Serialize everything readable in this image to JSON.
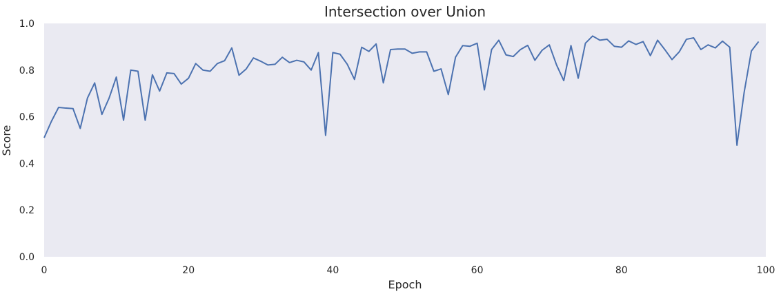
{
  "chart_data": {
    "type": "line",
    "title": "Intersection over Union",
    "xlabel": "Epoch",
    "ylabel": "Score",
    "xlim": [
      0,
      100
    ],
    "ylim": [
      0.0,
      1.0
    ],
    "xticks": [
      "0",
      "20",
      "40",
      "60",
      "80",
      "100"
    ],
    "yticks": [
      "0.0",
      "0.2",
      "0.4",
      "0.6",
      "0.8",
      "1.0"
    ],
    "grid": false,
    "colors": {
      "plot_bg": "#eaeaf2",
      "line": "#4c72b0"
    },
    "series": [
      {
        "x": [
          0,
          1,
          2,
          3,
          4,
          5,
          6,
          7,
          8,
          9,
          10,
          11,
          12,
          13,
          14,
          15,
          16,
          17,
          18,
          19,
          20,
          21,
          22,
          23,
          24,
          25,
          26,
          27,
          28,
          29,
          30,
          31,
          32,
          33,
          34,
          35,
          36,
          37,
          38,
          39,
          40,
          41,
          42,
          43,
          44,
          45,
          46,
          47,
          48,
          49,
          50,
          51,
          52,
          53,
          54,
          55,
          56,
          57,
          58,
          59,
          60,
          61,
          62,
          63,
          64,
          65,
          66,
          67,
          68,
          69,
          70,
          71,
          72,
          73,
          74,
          75,
          76,
          77,
          78,
          79,
          80,
          81,
          82,
          83,
          84,
          85,
          86,
          87,
          88,
          89,
          90,
          91,
          92,
          93,
          94,
          95,
          96,
          97,
          98,
          99
        ],
        "values": [
          0.51,
          0.58,
          0.64,
          0.637,
          0.635,
          0.55,
          0.68,
          0.745,
          0.61,
          0.68,
          0.77,
          0.585,
          0.8,
          0.795,
          0.585,
          0.78,
          0.71,
          0.788,
          0.785,
          0.74,
          0.765,
          0.828,
          0.8,
          0.795,
          0.828,
          0.84,
          0.895,
          0.778,
          0.805,
          0.852,
          0.838,
          0.822,
          0.825,
          0.855,
          0.832,
          0.842,
          0.835,
          0.8,
          0.875,
          0.52,
          0.875,
          0.868,
          0.825,
          0.76,
          0.898,
          0.88,
          0.912,
          0.745,
          0.888,
          0.89,
          0.89,
          0.872,
          0.878,
          0.878,
          0.795,
          0.805,
          0.695,
          0.855,
          0.905,
          0.902,
          0.915,
          0.715,
          0.888,
          0.928,
          0.865,
          0.858,
          0.888,
          0.906,
          0.842,
          0.885,
          0.908,
          0.822,
          0.755,
          0.905,
          0.765,
          0.915,
          0.946,
          0.928,
          0.932,
          0.902,
          0.898,
          0.925,
          0.91,
          0.922,
          0.862,
          0.928,
          0.888,
          0.845,
          0.878,
          0.932,
          0.938,
          0.888,
          0.908,
          0.895,
          0.924,
          0.898,
          0.478,
          0.705,
          0.882,
          0.922
        ]
      }
    ]
  }
}
